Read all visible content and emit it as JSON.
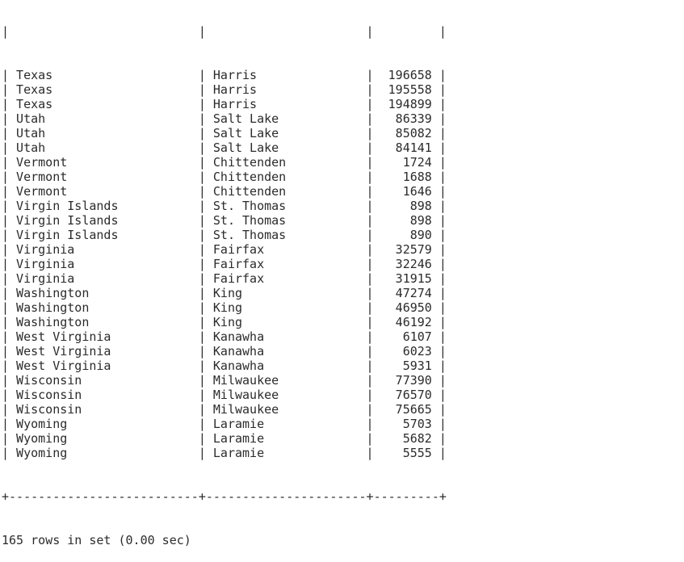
{
  "rows": [
    {
      "state": "Texas",
      "county": "Harris",
      "value": "196658"
    },
    {
      "state": "Texas",
      "county": "Harris",
      "value": "195558"
    },
    {
      "state": "Texas",
      "county": "Harris",
      "value": "194899"
    },
    {
      "state": "Utah",
      "county": "Salt Lake",
      "value": "86339"
    },
    {
      "state": "Utah",
      "county": "Salt Lake",
      "value": "85082"
    },
    {
      "state": "Utah",
      "county": "Salt Lake",
      "value": "84141"
    },
    {
      "state": "Vermont",
      "county": "Chittenden",
      "value": "1724"
    },
    {
      "state": "Vermont",
      "county": "Chittenden",
      "value": "1688"
    },
    {
      "state": "Vermont",
      "county": "Chittenden",
      "value": "1646"
    },
    {
      "state": "Virgin Islands",
      "county": "St. Thomas",
      "value": "898"
    },
    {
      "state": "Virgin Islands",
      "county": "St. Thomas",
      "value": "898"
    },
    {
      "state": "Virgin Islands",
      "county": "St. Thomas",
      "value": "890"
    },
    {
      "state": "Virginia",
      "county": "Fairfax",
      "value": "32579"
    },
    {
      "state": "Virginia",
      "county": "Fairfax",
      "value": "32246"
    },
    {
      "state": "Virginia",
      "county": "Fairfax",
      "value": "31915"
    },
    {
      "state": "Washington",
      "county": "King",
      "value": "47274"
    },
    {
      "state": "Washington",
      "county": "King",
      "value": "46950"
    },
    {
      "state": "Washington",
      "county": "King",
      "value": "46192"
    },
    {
      "state": "West Virginia",
      "county": "Kanawha",
      "value": "6107"
    },
    {
      "state": "West Virginia",
      "county": "Kanawha",
      "value": "6023"
    },
    {
      "state": "West Virginia",
      "county": "Kanawha",
      "value": "5931"
    },
    {
      "state": "Wisconsin",
      "county": "Milwaukee",
      "value": "77390"
    },
    {
      "state": "Wisconsin",
      "county": "Milwaukee",
      "value": "76570"
    },
    {
      "state": "Wisconsin",
      "county": "Milwaukee",
      "value": "75665"
    },
    {
      "state": "Wyoming",
      "county": "Laramie",
      "value": "5703"
    },
    {
      "state": "Wyoming",
      "county": "Laramie",
      "value": "5682"
    },
    {
      "state": "Wyoming",
      "county": "Laramie",
      "value": "5555"
    }
  ],
  "status": "165 rows in set (0.00 sec)"
}
